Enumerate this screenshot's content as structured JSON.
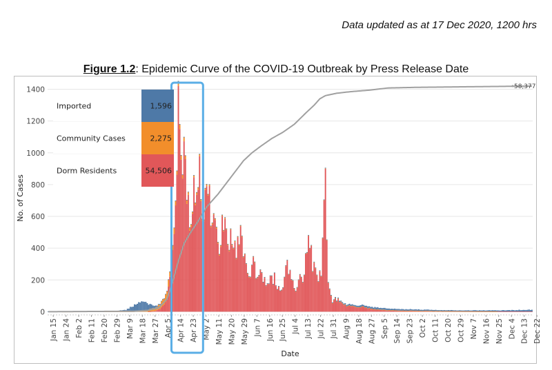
{
  "header": {
    "updated": "Data updated as at 17 Dec 2020, 1200 hrs",
    "figure_label": "Figure 1.2",
    "figure_title": ": Epidemic Curve of the COVID-19 Outbreak by Press Release Date"
  },
  "colors": {
    "imported": "#4e79a7",
    "community": "#f28e2b",
    "dorm": "#e15759",
    "cumulative": "#a0a0a0",
    "highlight": "#5aaee6",
    "gridline": "#e6e6e6"
  },
  "chart_data": {
    "type": "bar",
    "title": "Epidemic Curve of the COVID-19 Outbreak by Press Release Date",
    "xlabel": "Date",
    "ylabel": "No. of Cases",
    "ylim": [
      -20,
      1450
    ],
    "y_ticks": [
      0,
      200,
      400,
      600,
      800,
      1000,
      1200,
      1400
    ],
    "x_tick_labels": [
      "Jan 15",
      "Jan 24",
      "Feb 2",
      "Feb 11",
      "Feb 20",
      "Feb 29",
      "Mar 9",
      "Mar 18",
      "Mar 27",
      "Apr 5",
      "Apr 14",
      "Apr 23",
      "May 2",
      "May 11",
      "May 20",
      "May 29",
      "Jun 7",
      "Jun 16",
      "Jun 25",
      "Jul 4",
      "Jul 13",
      "Jul 22",
      "Jul 31",
      "Aug 9",
      "Aug 18",
      "Aug 27",
      "Sep 5",
      "Sep 14",
      "Sep 23",
      "Oct 2",
      "Oct 11",
      "Oct 20",
      "Oct 29",
      "Nov 7",
      "Nov 16",
      "Nov 25",
      "Dec 4",
      "Dec 13",
      "Dec 22"
    ],
    "x_tick_step_days": 9,
    "highlight_range": [
      "Apr 14",
      "Apr 23"
    ],
    "legend": [
      {
        "name": "Imported",
        "value": "1,596",
        "color": "#4e79a7"
      },
      {
        "name": "Community Cases",
        "value": "2,275",
        "color": "#f28e2b"
      },
      {
        "name": "Dorm Residents",
        "value": "54,506",
        "color": "#e15759"
      }
    ],
    "cumulative_end_label": "58,377",
    "series": [
      {
        "name": "Dorm Residents",
        "color": "#e15759",
        "key_points": [
          [
            0,
            0
          ],
          [
            70,
            0
          ],
          [
            76,
            5
          ],
          [
            80,
            25
          ],
          [
            84,
            80
          ],
          [
            87,
            260
          ],
          [
            89,
            540
          ],
          [
            91,
            900
          ],
          [
            92,
            1420
          ],
          [
            93,
            1110
          ],
          [
            95,
            980
          ],
          [
            97,
            870
          ],
          [
            99,
            720
          ],
          [
            101,
            560
          ],
          [
            103,
            760
          ],
          [
            105,
            680
          ],
          [
            107,
            860
          ],
          [
            109,
            640
          ],
          [
            111,
            780
          ],
          [
            113,
            820
          ],
          [
            115,
            640
          ],
          [
            118,
            500
          ],
          [
            121,
            420
          ],
          [
            124,
            620
          ],
          [
            127,
            480
          ],
          [
            130,
            430
          ],
          [
            133,
            380
          ],
          [
            136,
            520
          ],
          [
            139,
            310
          ],
          [
            142,
            240
          ],
          [
            145,
            330
          ],
          [
            148,
            200
          ],
          [
            151,
            250
          ],
          [
            154,
            170
          ],
          [
            157,
            200
          ],
          [
            160,
            210
          ],
          [
            163,
            150
          ],
          [
            166,
            160
          ],
          [
            169,
            330
          ],
          [
            172,
            190
          ],
          [
            175,
            160
          ],
          [
            178,
            230
          ],
          [
            181,
            220
          ],
          [
            184,
            500
          ],
          [
            187,
            300
          ],
          [
            190,
            220
          ],
          [
            193,
            260
          ],
          [
            196,
            900
          ],
          [
            198,
            200
          ],
          [
            201,
            60
          ],
          [
            204,
            80
          ],
          [
            210,
            40
          ],
          [
            216,
            30
          ],
          [
            222,
            30
          ],
          [
            230,
            15
          ],
          [
            240,
            8
          ],
          [
            260,
            5
          ],
          [
            280,
            3
          ],
          [
            300,
            2
          ],
          [
            342,
            1
          ]
        ]
      },
      {
        "name": "Community Cases",
        "color": "#f28e2b",
        "key_points": [
          [
            0,
            0
          ],
          [
            60,
            2
          ],
          [
            66,
            5
          ],
          [
            72,
            15
          ],
          [
            76,
            20
          ],
          [
            80,
            40
          ],
          [
            84,
            45
          ],
          [
            88,
            35
          ],
          [
            92,
            30
          ],
          [
            96,
            25
          ],
          [
            100,
            18
          ],
          [
            110,
            12
          ],
          [
            120,
            10
          ],
          [
            140,
            6
          ],
          [
            160,
            3
          ],
          [
            180,
            4
          ],
          [
            200,
            2
          ],
          [
            260,
            1
          ],
          [
            342,
            0
          ]
        ]
      },
      {
        "name": "Imported",
        "color": "#4e79a7",
        "key_points": [
          [
            0,
            1
          ],
          [
            10,
            3
          ],
          [
            20,
            2
          ],
          [
            30,
            1
          ],
          [
            45,
            2
          ],
          [
            55,
            10
          ],
          [
            60,
            35
          ],
          [
            63,
            55
          ],
          [
            66,
            60
          ],
          [
            70,
            40
          ],
          [
            74,
            20
          ],
          [
            78,
            5
          ],
          [
            90,
            1
          ],
          [
            160,
            1
          ],
          [
            190,
            3
          ],
          [
            200,
            5
          ],
          [
            215,
            10
          ],
          [
            230,
            12
          ],
          [
            260,
            8
          ],
          [
            290,
            6
          ],
          [
            320,
            7
          ],
          [
            342,
            12
          ]
        ]
      }
    ],
    "cumulative_shape": [
      [
        0,
        0
      ],
      [
        60,
        3
      ],
      [
        70,
        8
      ],
      [
        78,
        25
      ],
      [
        84,
        80
      ],
      [
        88,
        190
      ],
      [
        92,
        320
      ],
      [
        96,
        430
      ],
      [
        100,
        490
      ],
      [
        106,
        570
      ],
      [
        112,
        660
      ],
      [
        120,
        740
      ],
      [
        126,
        810
      ],
      [
        132,
        880
      ],
      [
        138,
        950
      ],
      [
        144,
        1000
      ],
      [
        150,
        1040
      ],
      [
        158,
        1090
      ],
      [
        166,
        1130
      ],
      [
        174,
        1180
      ],
      [
        182,
        1250
      ],
      [
        188,
        1300
      ],
      [
        192,
        1340
      ],
      [
        196,
        1360
      ],
      [
        204,
        1375
      ],
      [
        214,
        1385
      ],
      [
        228,
        1395
      ],
      [
        240,
        1408
      ],
      [
        260,
        1412
      ],
      [
        300,
        1416
      ],
      [
        342,
        1420
      ]
    ]
  }
}
